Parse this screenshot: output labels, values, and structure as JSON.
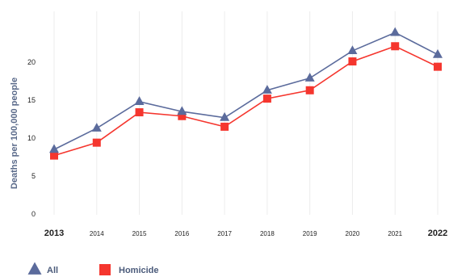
{
  "chart_data": {
    "type": "line",
    "title": "",
    "xlabel": "",
    "ylabel": "Deaths per 100,000 people",
    "x": [
      "2013",
      "2014",
      "2015",
      "2016",
      "2017",
      "2018",
      "2019",
      "2020",
      "2021",
      "2022"
    ],
    "yticks": [
      "0",
      "5",
      "10",
      "15",
      "20"
    ],
    "ylim": [
      0,
      25
    ],
    "grid": "vertical",
    "legend_position": "bottom-left",
    "series": [
      {
        "name": "All",
        "marker": "triangle",
        "color": "#5b6b9c",
        "values": [
          8.5,
          11.3,
          14.8,
          13.5,
          12.7,
          16.3,
          17.9,
          21.5,
          23.9,
          21.0
        ]
      },
      {
        "name": "Homicide",
        "marker": "square",
        "color": "#f5362e",
        "values": [
          7.7,
          9.4,
          13.4,
          12.9,
          11.5,
          15.2,
          16.3,
          20.1,
          22.1,
          19.4
        ]
      }
    ]
  }
}
